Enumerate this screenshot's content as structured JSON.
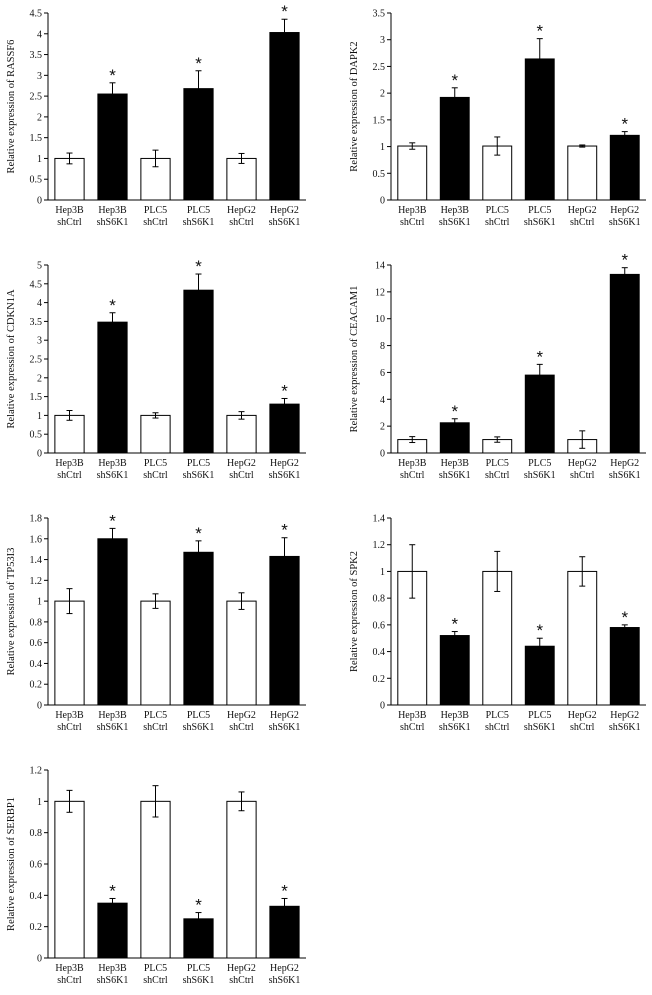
{
  "chart_data": [
    {
      "type": "bar",
      "title": "",
      "ylabel": "Relative expression of RASSF6",
      "ylim": [
        0,
        4.5
      ],
      "yticks": [
        "0",
        "0.5",
        "1",
        "1.5",
        "2",
        "2.5",
        "3",
        "3.5",
        "4",
        "4.5"
      ],
      "categories": [
        [
          "Hep3B",
          "shCtrl"
        ],
        [
          "Hep3B",
          "shS6K1"
        ],
        [
          "PLC5",
          "shCtrl"
        ],
        [
          "PLC5",
          "shS6K1"
        ],
        [
          "HepG2",
          "shCtrl"
        ],
        [
          "HepG2",
          "shS6K1"
        ]
      ],
      "values": [
        1.0,
        2.55,
        1.0,
        2.68,
        1.0,
        4.03
      ],
      "errors": [
        0.13,
        0.27,
        0.2,
        0.43,
        0.12,
        0.32
      ],
      "significance": [
        "",
        "*",
        "",
        "*",
        "",
        "*"
      ],
      "fill": [
        "#ffffff",
        "#000000",
        "#ffffff",
        "#000000",
        "#ffffff",
        "#000000"
      ]
    },
    {
      "type": "bar",
      "title": "",
      "ylabel": "Relative expression of DAPK2",
      "ylim": [
        0,
        3.5
      ],
      "yticks": [
        "0",
        "0.5",
        "1",
        "1.5",
        "2",
        "2.5",
        "3",
        "3.5"
      ],
      "categories": [
        [
          "Hep3B",
          "shCtrl"
        ],
        [
          "Hep3B",
          "shS6K1"
        ],
        [
          "PLC5",
          "shCtrl"
        ],
        [
          "PLC5",
          "shS6K1"
        ],
        [
          "HepG2",
          "shCtrl"
        ],
        [
          "HepG2",
          "shS6K1"
        ]
      ],
      "values": [
        1.01,
        1.92,
        1.01,
        2.64,
        1.01,
        1.21
      ],
      "errors": [
        0.06,
        0.18,
        0.17,
        0.38,
        0.02,
        0.07
      ],
      "significance": [
        "",
        "*",
        "",
        "*",
        "",
        "*"
      ],
      "fill": [
        "#ffffff",
        "#000000",
        "#ffffff",
        "#000000",
        "#ffffff",
        "#000000"
      ]
    },
    {
      "type": "bar",
      "title": "",
      "ylabel": "Relative expression of CDKN1A",
      "ylim": [
        0,
        5
      ],
      "yticks": [
        "0",
        "0.5",
        "1",
        "1.5",
        "2",
        "2.5",
        "3",
        "3.5",
        "4",
        "4.5",
        "5"
      ],
      "categories": [
        [
          "Hep3B",
          "shCtrl"
        ],
        [
          "Hep3B",
          "shS6K1"
        ],
        [
          "PLC5",
          "shCtrl"
        ],
        [
          "PLC5",
          "shS6K1"
        ],
        [
          "HepG2",
          "shCtrl"
        ],
        [
          "HepG2",
          "shS6K1"
        ]
      ],
      "values": [
        1.0,
        3.48,
        1.0,
        4.33,
        1.0,
        1.3
      ],
      "errors": [
        0.13,
        0.25,
        0.07,
        0.43,
        0.1,
        0.15
      ],
      "significance": [
        "",
        "*",
        "",
        "*",
        "",
        "*"
      ],
      "fill": [
        "#ffffff",
        "#000000",
        "#ffffff",
        "#000000",
        "#ffffff",
        "#000000"
      ]
    },
    {
      "type": "bar",
      "title": "",
      "ylabel": "Relative expression of CEACAM1",
      "ylim": [
        0,
        14
      ],
      "yticks": [
        "0",
        "2",
        "4",
        "6",
        "8",
        "10",
        "12",
        "14"
      ],
      "categories": [
        [
          "Hep3B",
          "shCtrl"
        ],
        [
          "Hep3B",
          "shS6K1"
        ],
        [
          "PLC5",
          "shCtrl"
        ],
        [
          "PLC5",
          "shS6K1"
        ],
        [
          "HepG2",
          "shCtrl"
        ],
        [
          "HepG2",
          "shS6K1"
        ]
      ],
      "values": [
        1.0,
        2.25,
        1.0,
        5.8,
        1.0,
        13.3
      ],
      "errors": [
        0.22,
        0.3,
        0.2,
        0.8,
        0.65,
        0.5
      ],
      "significance": [
        "",
        "*",
        "",
        "*",
        "",
        "*"
      ],
      "fill": [
        "#ffffff",
        "#000000",
        "#ffffff",
        "#000000",
        "#ffffff",
        "#000000"
      ]
    },
    {
      "type": "bar",
      "title": "",
      "ylabel": "Relative expression of TP53I3",
      "ylim": [
        0,
        1.8
      ],
      "yticks": [
        "0",
        "0.2",
        "0.4",
        "0.6",
        "0.8",
        "1",
        "1.2",
        "1.4",
        "1.6",
        "1.8"
      ],
      "categories": [
        [
          "Hep3B",
          "shCtrl"
        ],
        [
          "Hep3B",
          "shS6K1"
        ],
        [
          "PLC5",
          "shCtrl"
        ],
        [
          "PLC5",
          "shS6K1"
        ],
        [
          "HepG2",
          "shCtrl"
        ],
        [
          "HepG2",
          "shS6K1"
        ]
      ],
      "values": [
        1.0,
        1.6,
        1.0,
        1.47,
        1.0,
        1.43
      ],
      "errors": [
        0.12,
        0.1,
        0.07,
        0.11,
        0.08,
        0.18
      ],
      "significance": [
        "",
        "*",
        "",
        "*",
        "",
        "*"
      ],
      "fill": [
        "#ffffff",
        "#000000",
        "#ffffff",
        "#000000",
        "#ffffff",
        "#000000"
      ]
    },
    {
      "type": "bar",
      "title": "",
      "ylabel": "Relative expression of SPK2",
      "ylim": [
        0,
        1.4
      ],
      "yticks": [
        "0",
        "0.2",
        "0.4",
        "0.6",
        "0.8",
        "1",
        "1.2",
        "1.4"
      ],
      "categories": [
        [
          "Hep3B",
          "shCtrl"
        ],
        [
          "Hep3B",
          "shS6K1"
        ],
        [
          "PLC5",
          "shCtrl"
        ],
        [
          "PLC5",
          "shS6K1"
        ],
        [
          "HepG2",
          "shCtrl"
        ],
        [
          "HepG2",
          "shS6K1"
        ]
      ],
      "values": [
        1.0,
        0.52,
        1.0,
        0.44,
        1.0,
        0.58
      ],
      "errors": [
        0.2,
        0.03,
        0.15,
        0.06,
        0.11,
        0.02
      ],
      "significance": [
        "",
        "*",
        "",
        "*",
        "",
        "*"
      ],
      "fill": [
        "#ffffff",
        "#000000",
        "#ffffff",
        "#000000",
        "#ffffff",
        "#000000"
      ]
    },
    {
      "type": "bar",
      "title": "",
      "ylabel": "Relative expression of SERBP1",
      "ylim": [
        0,
        1.2
      ],
      "yticks": [
        "0",
        "0.2",
        "0.4",
        "0.6",
        "0.8",
        "1",
        "1.2"
      ],
      "categories": [
        [
          "Hep3B",
          "shCtrl"
        ],
        [
          "Hep3B",
          "shS6K1"
        ],
        [
          "PLC5",
          "shCtrl"
        ],
        [
          "PLC5",
          "shS6K1"
        ],
        [
          "HepG2",
          "shCtrl"
        ],
        [
          "HepG2",
          "shS6K1"
        ]
      ],
      "values": [
        1.0,
        0.35,
        1.0,
        0.25,
        1.0,
        0.33
      ],
      "errors": [
        0.07,
        0.03,
        0.1,
        0.04,
        0.06,
        0.05
      ],
      "significance": [
        "",
        "*",
        "",
        "*",
        "",
        "*"
      ],
      "fill": [
        "#ffffff",
        "#000000",
        "#ffffff",
        "#000000",
        "#ffffff",
        "#000000"
      ]
    }
  ]
}
